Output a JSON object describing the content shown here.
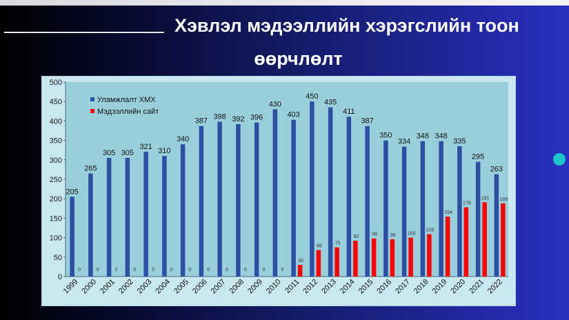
{
  "header": {
    "title_line1": "Хэвлэл мэдээллийн хэрэгслийн тоон",
    "title_line2": "өөрчлөлт"
  },
  "colors": {
    "series_1": "#2d4fa3",
    "series_2": "#ff0000",
    "plot_bg": "#99cfdb",
    "accent_dot": "#19c6c9"
  },
  "chart_data": {
    "type": "bar",
    "categories": [
      "1999",
      "2000",
      "2001",
      "2002",
      "2003",
      "2004",
      "2005",
      "2006",
      "2007",
      "2008",
      "2009",
      "2010",
      "2011",
      "2012",
      "2013",
      "2014",
      "2015",
      "2016",
      "2017",
      "2018",
      "2019",
      "2020",
      "2021",
      "2022"
    ],
    "series": [
      {
        "name": "Уламжлалт ХМХ",
        "values": [
          205,
          265,
          305,
          305,
          321,
          310,
          340,
          387,
          398,
          392,
          396,
          430,
          403,
          450,
          435,
          411,
          387,
          350,
          334,
          348,
          348,
          335,
          295,
          263
        ],
        "labels": [
          "205",
          "265",
          "305",
          "305",
          "321",
          "310",
          "340",
          "387",
          "398",
          "392",
          "396",
          "430",
          "403",
          "450",
          "435",
          "411",
          "387",
          "350",
          "334",
          "348",
          "348",
          "335",
          "295",
          "263"
        ]
      },
      {
        "name": "Мэдээллийн сайт",
        "values": [
          0,
          0,
          0,
          0,
          0,
          0,
          0,
          0,
          0,
          0,
          0,
          0,
          30,
          68,
          75,
          92,
          98,
          96,
          100,
          109,
          154,
          178,
          191,
          188
        ],
        "labels": [
          "0",
          "0",
          "0",
          "0",
          "0",
          "0",
          "0",
          "0",
          "0",
          "0",
          "0",
          "0",
          "30",
          "68",
          "75",
          "92",
          "98",
          "96",
          "100",
          "109",
          "154",
          "178",
          "191",
          "188"
        ]
      }
    ],
    "ylim": [
      0,
      500
    ],
    "yticks": [
      "0",
      "50",
      "100",
      "150",
      "200",
      "250",
      "300",
      "350",
      "400",
      "450",
      "500"
    ],
    "legend_position": "top-left",
    "grid": false
  }
}
